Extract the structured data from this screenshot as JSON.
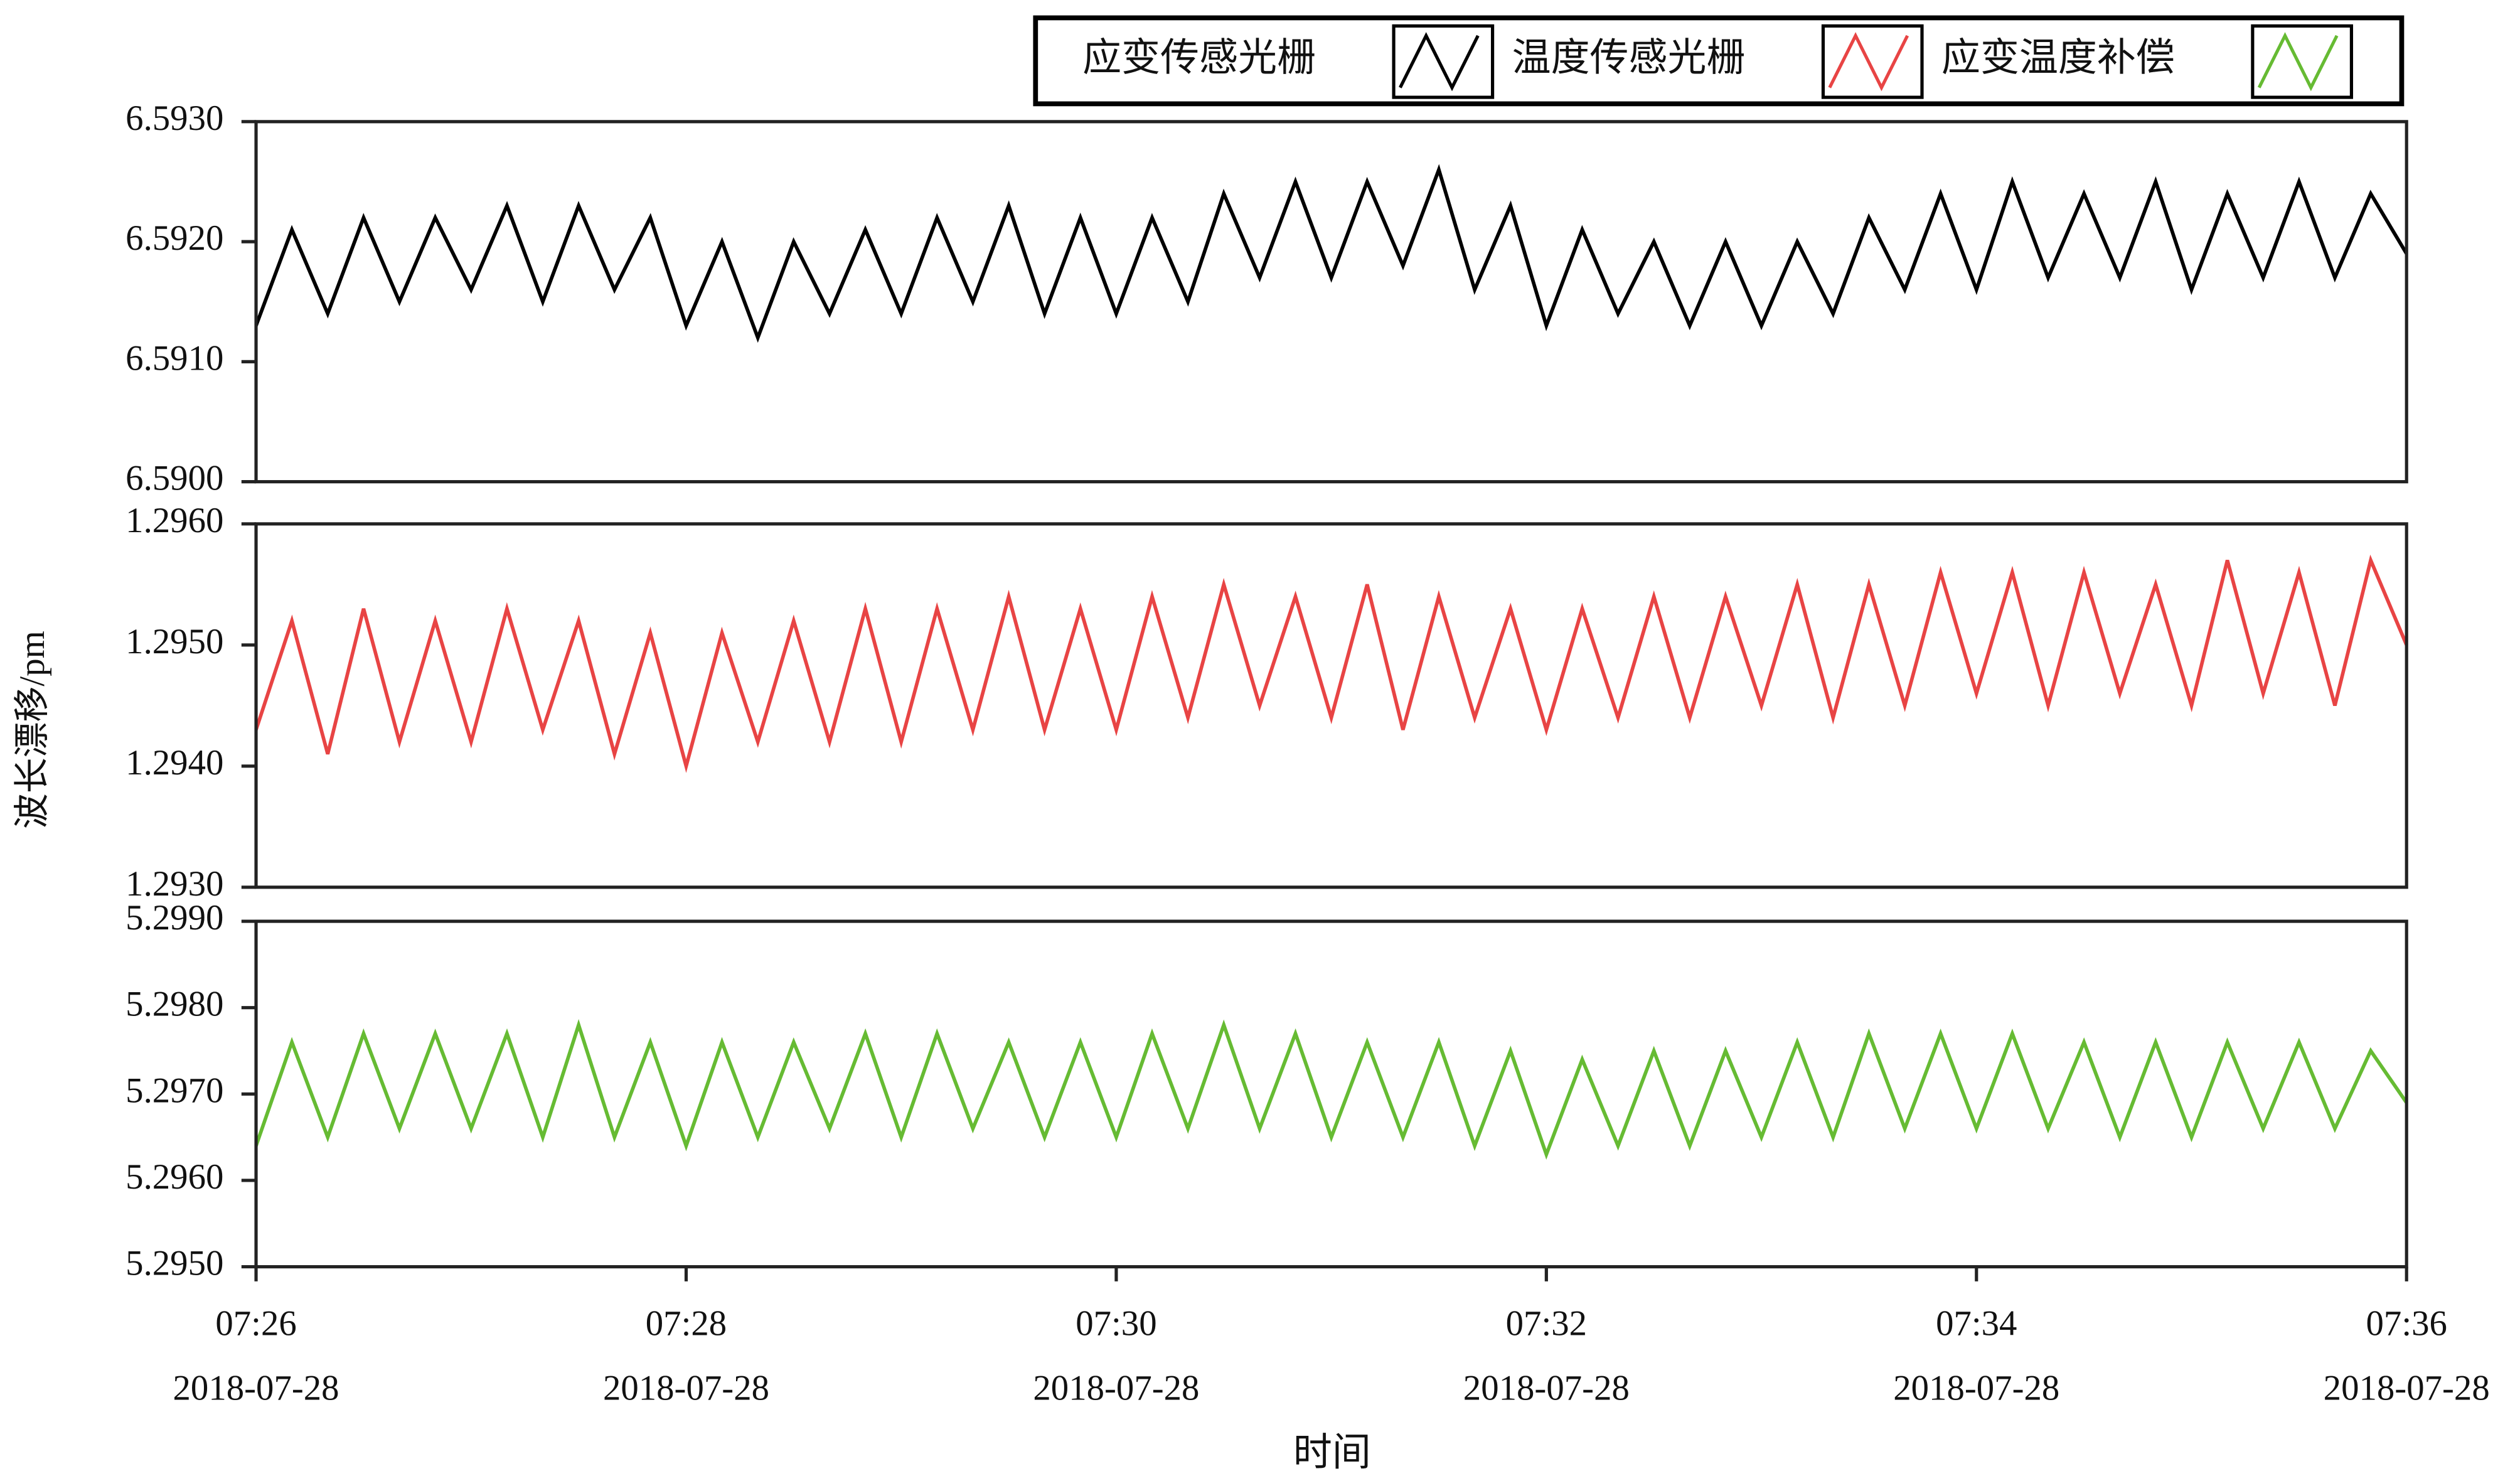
{
  "chart_data": {
    "type": "line",
    "xlabel": "时间",
    "ylabel": "波长漂移/pm",
    "x": [
      "2018-07-28 07:26:00",
      "2018-07-28 07:26:10",
      "2018-07-28 07:26:20",
      "2018-07-28 07:26:30",
      "2018-07-28 07:26:40",
      "2018-07-28 07:26:50",
      "2018-07-28 07:27:00",
      "2018-07-28 07:27:10",
      "2018-07-28 07:27:20",
      "2018-07-28 07:27:30",
      "2018-07-28 07:27:40",
      "2018-07-28 07:27:50",
      "2018-07-28 07:28:00",
      "2018-07-28 07:28:10",
      "2018-07-28 07:28:20",
      "2018-07-28 07:28:30",
      "2018-07-28 07:28:40",
      "2018-07-28 07:28:50",
      "2018-07-28 07:29:00",
      "2018-07-28 07:29:10",
      "2018-07-28 07:29:20",
      "2018-07-28 07:29:30",
      "2018-07-28 07:29:40",
      "2018-07-28 07:29:50",
      "2018-07-28 07:30:00",
      "2018-07-28 07:30:10",
      "2018-07-28 07:30:20",
      "2018-07-28 07:30:30",
      "2018-07-28 07:30:40",
      "2018-07-28 07:30:50",
      "2018-07-28 07:31:00",
      "2018-07-28 07:31:10",
      "2018-07-28 07:31:20",
      "2018-07-28 07:31:30",
      "2018-07-28 07:31:40",
      "2018-07-28 07:31:50",
      "2018-07-28 07:32:00",
      "2018-07-28 07:32:10",
      "2018-07-28 07:32:20",
      "2018-07-28 07:32:30",
      "2018-07-28 07:32:40",
      "2018-07-28 07:32:50",
      "2018-07-28 07:33:00",
      "2018-07-28 07:33:10",
      "2018-07-28 07:33:20",
      "2018-07-28 07:33:30",
      "2018-07-28 07:33:40",
      "2018-07-28 07:33:50",
      "2018-07-28 07:34:00",
      "2018-07-28 07:34:10",
      "2018-07-28 07:34:20",
      "2018-07-28 07:34:30",
      "2018-07-28 07:34:40",
      "2018-07-28 07:34:50",
      "2018-07-28 07:35:00",
      "2018-07-28 07:35:10",
      "2018-07-28 07:35:20",
      "2018-07-28 07:35:30",
      "2018-07-28 07:35:40",
      "2018-07-28 07:35:50",
      "2018-07-28 07:36:00"
    ],
    "xlim": [
      "2018-07-28 07:26",
      "2018-07-28 07:36"
    ],
    "xticks": [
      {
        "value": "2018-07-28 07:26",
        "label": [
          "07:26",
          "2018-07-28"
        ]
      },
      {
        "value": "2018-07-28 07:28",
        "label": [
          "07:28",
          "2018-07-28"
        ]
      },
      {
        "value": "2018-07-28 07:30",
        "label": [
          "07:30",
          "2018-07-28"
        ]
      },
      {
        "value": "2018-07-28 07:32",
        "label": [
          "07:32",
          "2018-07-28"
        ]
      },
      {
        "value": "2018-07-28 07:34",
        "label": [
          "07:34",
          "2018-07-28"
        ]
      },
      {
        "value": "2018-07-28 07:36",
        "label": [
          "07:36",
          "2018-07-28"
        ]
      }
    ],
    "panels": [
      {
        "ylim": [
          6.59,
          6.593
        ],
        "yticks": [
          {
            "value": 6.59,
            "label": "6.5900"
          },
          {
            "value": 6.591,
            "label": "6.5910"
          },
          {
            "value": 6.592,
            "label": "6.5920"
          },
          {
            "value": 6.593,
            "label": "6.5930"
          }
        ],
        "series": [
          {
            "name": "应变传感光栅",
            "color": "#000000",
            "values": [
              6.5913,
              6.5921,
              6.5914,
              6.5922,
              6.5915,
              6.5922,
              6.5916,
              6.5923,
              6.5915,
              6.5923,
              6.5916,
              6.5922,
              6.5913,
              6.592,
              6.5912,
              6.592,
              6.5914,
              6.5921,
              6.5914,
              6.5922,
              6.5915,
              6.5923,
              6.5914,
              6.5922,
              6.5914,
              6.5922,
              6.5915,
              6.5924,
              6.5917,
              6.5925,
              6.5917,
              6.5925,
              6.5918,
              6.5926,
              6.5916,
              6.5923,
              6.5913,
              6.5921,
              6.5914,
              6.592,
              6.5913,
              6.592,
              6.5913,
              6.592,
              6.5914,
              6.5922,
              6.5916,
              6.5924,
              6.5916,
              6.5925,
              6.5917,
              6.5924,
              6.5917,
              6.5925,
              6.5916,
              6.5924,
              6.5917,
              6.5925,
              6.5917,
              6.5924,
              6.5919
            ]
          }
        ]
      },
      {
        "ylim": [
          1.293,
          1.296
        ],
        "yticks": [
          {
            "value": 1.293,
            "label": "1.2930"
          },
          {
            "value": 1.294,
            "label": "1.2940"
          },
          {
            "value": 1.295,
            "label": "1.2950"
          },
          {
            "value": 1.296,
            "label": "1.2960"
          }
        ],
        "series": [
          {
            "name": "温度传感光栅",
            "color": "#e84444",
            "values": [
              1.2943,
              1.2952,
              1.2941,
              1.2953,
              1.2942,
              1.2952,
              1.2942,
              1.2953,
              1.2943,
              1.2952,
              1.2941,
              1.2951,
              1.294,
              1.2951,
              1.2942,
              1.2952,
              1.2942,
              1.2953,
              1.2942,
              1.2953,
              1.2943,
              1.2954,
              1.2943,
              1.2953,
              1.2943,
              1.2954,
              1.2944,
              1.2955,
              1.2945,
              1.2954,
              1.2944,
              1.2955,
              1.2943,
              1.2954,
              1.2944,
              1.2953,
              1.2943,
              1.2953,
              1.2944,
              1.2954,
              1.2944,
              1.2954,
              1.2945,
              1.2955,
              1.2944,
              1.2955,
              1.2945,
              1.2956,
              1.2946,
              1.2956,
              1.2945,
              1.2956,
              1.2946,
              1.2955,
              1.2945,
              1.2957,
              1.2946,
              1.2956,
              1.2945,
              1.2957,
              1.295
            ]
          }
        ]
      },
      {
        "ylim": [
          5.295,
          5.299
        ],
        "yticks": [
          {
            "value": 5.295,
            "label": "5.2950"
          },
          {
            "value": 5.296,
            "label": "5.2960"
          },
          {
            "value": 5.297,
            "label": "5.2970"
          },
          {
            "value": 5.298,
            "label": "5.2980"
          },
          {
            "value": 5.299,
            "label": "5.2990"
          }
        ],
        "series": [
          {
            "name": "应变温度补偿",
            "color": "#66bb33",
            "values": [
              5.2964,
              5.2976,
              5.2965,
              5.2977,
              5.2966,
              5.2977,
              5.2966,
              5.2977,
              5.2965,
              5.2978,
              5.2965,
              5.2976,
              5.2964,
              5.2976,
              5.2965,
              5.2976,
              5.2966,
              5.2977,
              5.2965,
              5.2977,
              5.2966,
              5.2976,
              5.2965,
              5.2976,
              5.2965,
              5.2977,
              5.2966,
              5.2978,
              5.2966,
              5.2977,
              5.2965,
              5.2976,
              5.2965,
              5.2976,
              5.2964,
              5.2975,
              5.2963,
              5.2974,
              5.2964,
              5.2975,
              5.2964,
              5.2975,
              5.2965,
              5.2976,
              5.2965,
              5.2977,
              5.2966,
              5.2977,
              5.2966,
              5.2977,
              5.2966,
              5.2976,
              5.2965,
              5.2976,
              5.2965,
              5.2976,
              5.2966,
              5.2976,
              5.2966,
              5.2975,
              5.2969
            ]
          }
        ]
      }
    ]
  }
}
